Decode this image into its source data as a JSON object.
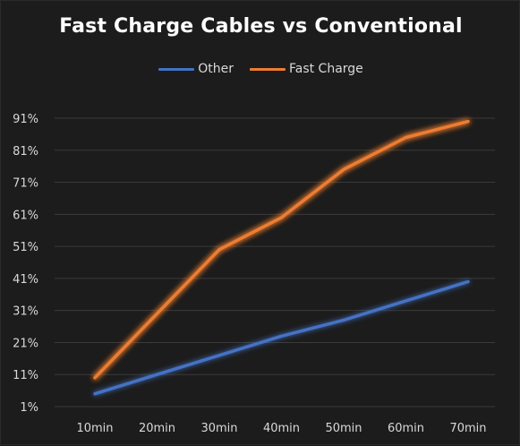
{
  "chart_data": {
    "type": "line",
    "title": "Fast Charge Cables vs Conventional",
    "xlabel": "",
    "ylabel": "",
    "categories": [
      "10min",
      "20min",
      "30min",
      "40min",
      "50min",
      "60min",
      "70min"
    ],
    "y_ticks": [
      "1%",
      "11%",
      "21%",
      "31%",
      "41%",
      "51%",
      "61%",
      "71%",
      "81%",
      "91%"
    ],
    "ylim": [
      1,
      91
    ],
    "grid": "horizontal",
    "legend_position": "top-center",
    "series": [
      {
        "name": "Other",
        "color": "#4472c4",
        "values": [
          5,
          11,
          17,
          23,
          28,
          34,
          40
        ]
      },
      {
        "name": "Fast Charge",
        "color": "#ed7d31",
        "values": [
          10,
          30,
          50,
          60,
          75,
          85,
          90
        ]
      }
    ]
  }
}
